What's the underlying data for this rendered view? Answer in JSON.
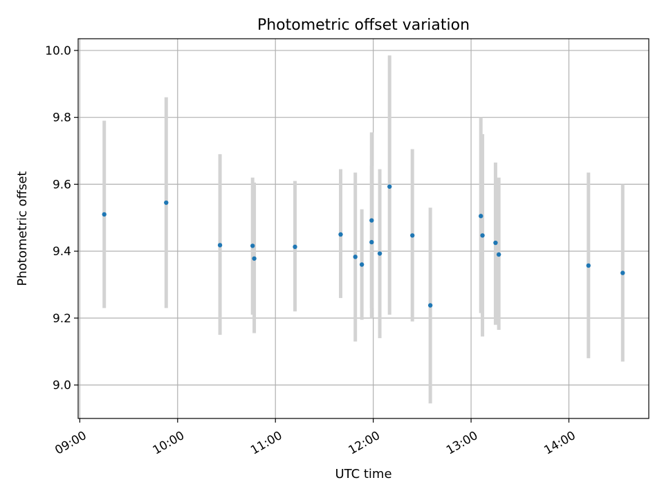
{
  "chart_data": {
    "type": "scatter",
    "title": "Photometric offset variation",
    "xlabel": "UTC time",
    "ylabel": "Photometric offset",
    "x_ticks": [
      "09:00",
      "10:00",
      "11:00",
      "12:00",
      "13:00",
      "14:00"
    ],
    "y_ticks": [
      "9.0",
      "9.2",
      "9.4",
      "9.6",
      "9.8",
      "10.0"
    ],
    "xlim": [
      "08:59",
      "14:49"
    ],
    "ylim": [
      8.9,
      10.035
    ],
    "grid": true,
    "colors": {
      "point": "#1f77b4",
      "errorbar": "#d3d3d3",
      "grid": "#b0b0b0"
    },
    "points": [
      {
        "time": "09:15",
        "y": 9.51,
        "err_low": 9.23,
        "err_high": 9.79
      },
      {
        "time": "09:53",
        "y": 9.545,
        "err_low": 9.23,
        "err_high": 9.86
      },
      {
        "time": "10:26",
        "y": 9.418,
        "err_low": 9.15,
        "err_high": 9.69
      },
      {
        "time": "10:46",
        "y": 9.416,
        "err_low": 9.21,
        "err_high": 9.62
      },
      {
        "time": "10:47",
        "y": 9.378,
        "err_low": 9.155,
        "err_high": 9.605
      },
      {
        "time": "11:12",
        "y": 9.413,
        "err_low": 9.22,
        "err_high": 9.61
      },
      {
        "time": "11:40",
        "y": 9.45,
        "err_low": 9.26,
        "err_high": 9.645
      },
      {
        "time": "11:49",
        "y": 9.383,
        "err_low": 9.13,
        "err_high": 9.635
      },
      {
        "time": "11:53",
        "y": 9.36,
        "err_low": 9.195,
        "err_high": 9.525
      },
      {
        "time": "11:59",
        "y": 9.427,
        "err_low": 9.2,
        "err_high": 9.655
      },
      {
        "time": "11:59",
        "y": 9.492,
        "err_low": 9.23,
        "err_high": 9.755
      },
      {
        "time": "12:04",
        "y": 9.393,
        "err_low": 9.14,
        "err_high": 9.645
      },
      {
        "time": "12:10",
        "y": 9.593,
        "err_low": 9.21,
        "err_high": 9.985
      },
      {
        "time": "12:24",
        "y": 9.447,
        "err_low": 9.19,
        "err_high": 9.705
      },
      {
        "time": "12:35",
        "y": 9.238,
        "err_low": 8.945,
        "err_high": 9.53
      },
      {
        "time": "13:06",
        "y": 9.505,
        "err_low": 9.215,
        "err_high": 9.8
      },
      {
        "time": "13:07",
        "y": 9.447,
        "err_low": 9.145,
        "err_high": 9.75
      },
      {
        "time": "13:15",
        "y": 9.425,
        "err_low": 9.18,
        "err_high": 9.665
      },
      {
        "time": "13:17",
        "y": 9.39,
        "err_low": 9.165,
        "err_high": 9.62
      },
      {
        "time": "14:12",
        "y": 9.357,
        "err_low": 9.08,
        "err_high": 9.635
      },
      {
        "time": "14:33",
        "y": 9.335,
        "err_low": 9.07,
        "err_high": 9.6
      }
    ]
  }
}
